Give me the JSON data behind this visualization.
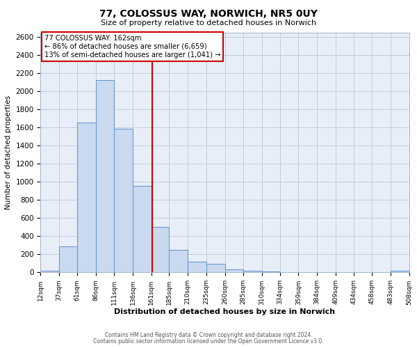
{
  "title": "77, COLOSSUS WAY, NORWICH, NR5 0UY",
  "subtitle": "Size of property relative to detached houses in Norwich",
  "xlabel": "Distribution of detached houses by size in Norwich",
  "ylabel": "Number of detached properties",
  "bar_left_edges": [
    12,
    37,
    61,
    86,
    111,
    136,
    161,
    185,
    210,
    235,
    260,
    285,
    310,
    334,
    359,
    384,
    409,
    434,
    458,
    483
  ],
  "bar_widths": [
    25,
    24,
    25,
    25,
    25,
    25,
    24,
    25,
    25,
    25,
    25,
    25,
    24,
    25,
    25,
    25,
    25,
    24,
    25,
    25
  ],
  "bar_heights": [
    20,
    290,
    1660,
    2130,
    1590,
    960,
    500,
    250,
    120,
    95,
    35,
    15,
    10,
    5,
    3,
    3,
    2,
    2,
    2,
    15
  ],
  "bar_color": "#c8d9f0",
  "bar_edge_color": "#6090c8",
  "property_size": 162,
  "vline_color": "#cc0000",
  "annotation_line1": "77 COLOSSUS WAY: 162sqm",
  "annotation_line2": "← 86% of detached houses are smaller (6,659)",
  "annotation_line3": "13% of semi-detached houses are larger (1,041) →",
  "annotation_box_color": "#cc0000",
  "tick_labels": [
    "12sqm",
    "37sqm",
    "61sqm",
    "86sqm",
    "111sqm",
    "136sqm",
    "161sqm",
    "185sqm",
    "210sqm",
    "235sqm",
    "260sqm",
    "285sqm",
    "310sqm",
    "334sqm",
    "359sqm",
    "384sqm",
    "409sqm",
    "434sqm",
    "458sqm",
    "483sqm",
    "508sqm"
  ],
  "ylim": [
    0,
    2650
  ],
  "yticks": [
    0,
    200,
    400,
    600,
    800,
    1000,
    1200,
    1400,
    1600,
    1800,
    2000,
    2200,
    2400,
    2600
  ],
  "background_color": "#ffffff",
  "plot_bg_color": "#e8eef8",
  "grid_color": "#b8c8dc",
  "footer_line1": "Contains HM Land Registry data © Crown copyright and database right 2024.",
  "footer_line2": "Contains public sector information licensed under the Open Government Licence v3.0."
}
